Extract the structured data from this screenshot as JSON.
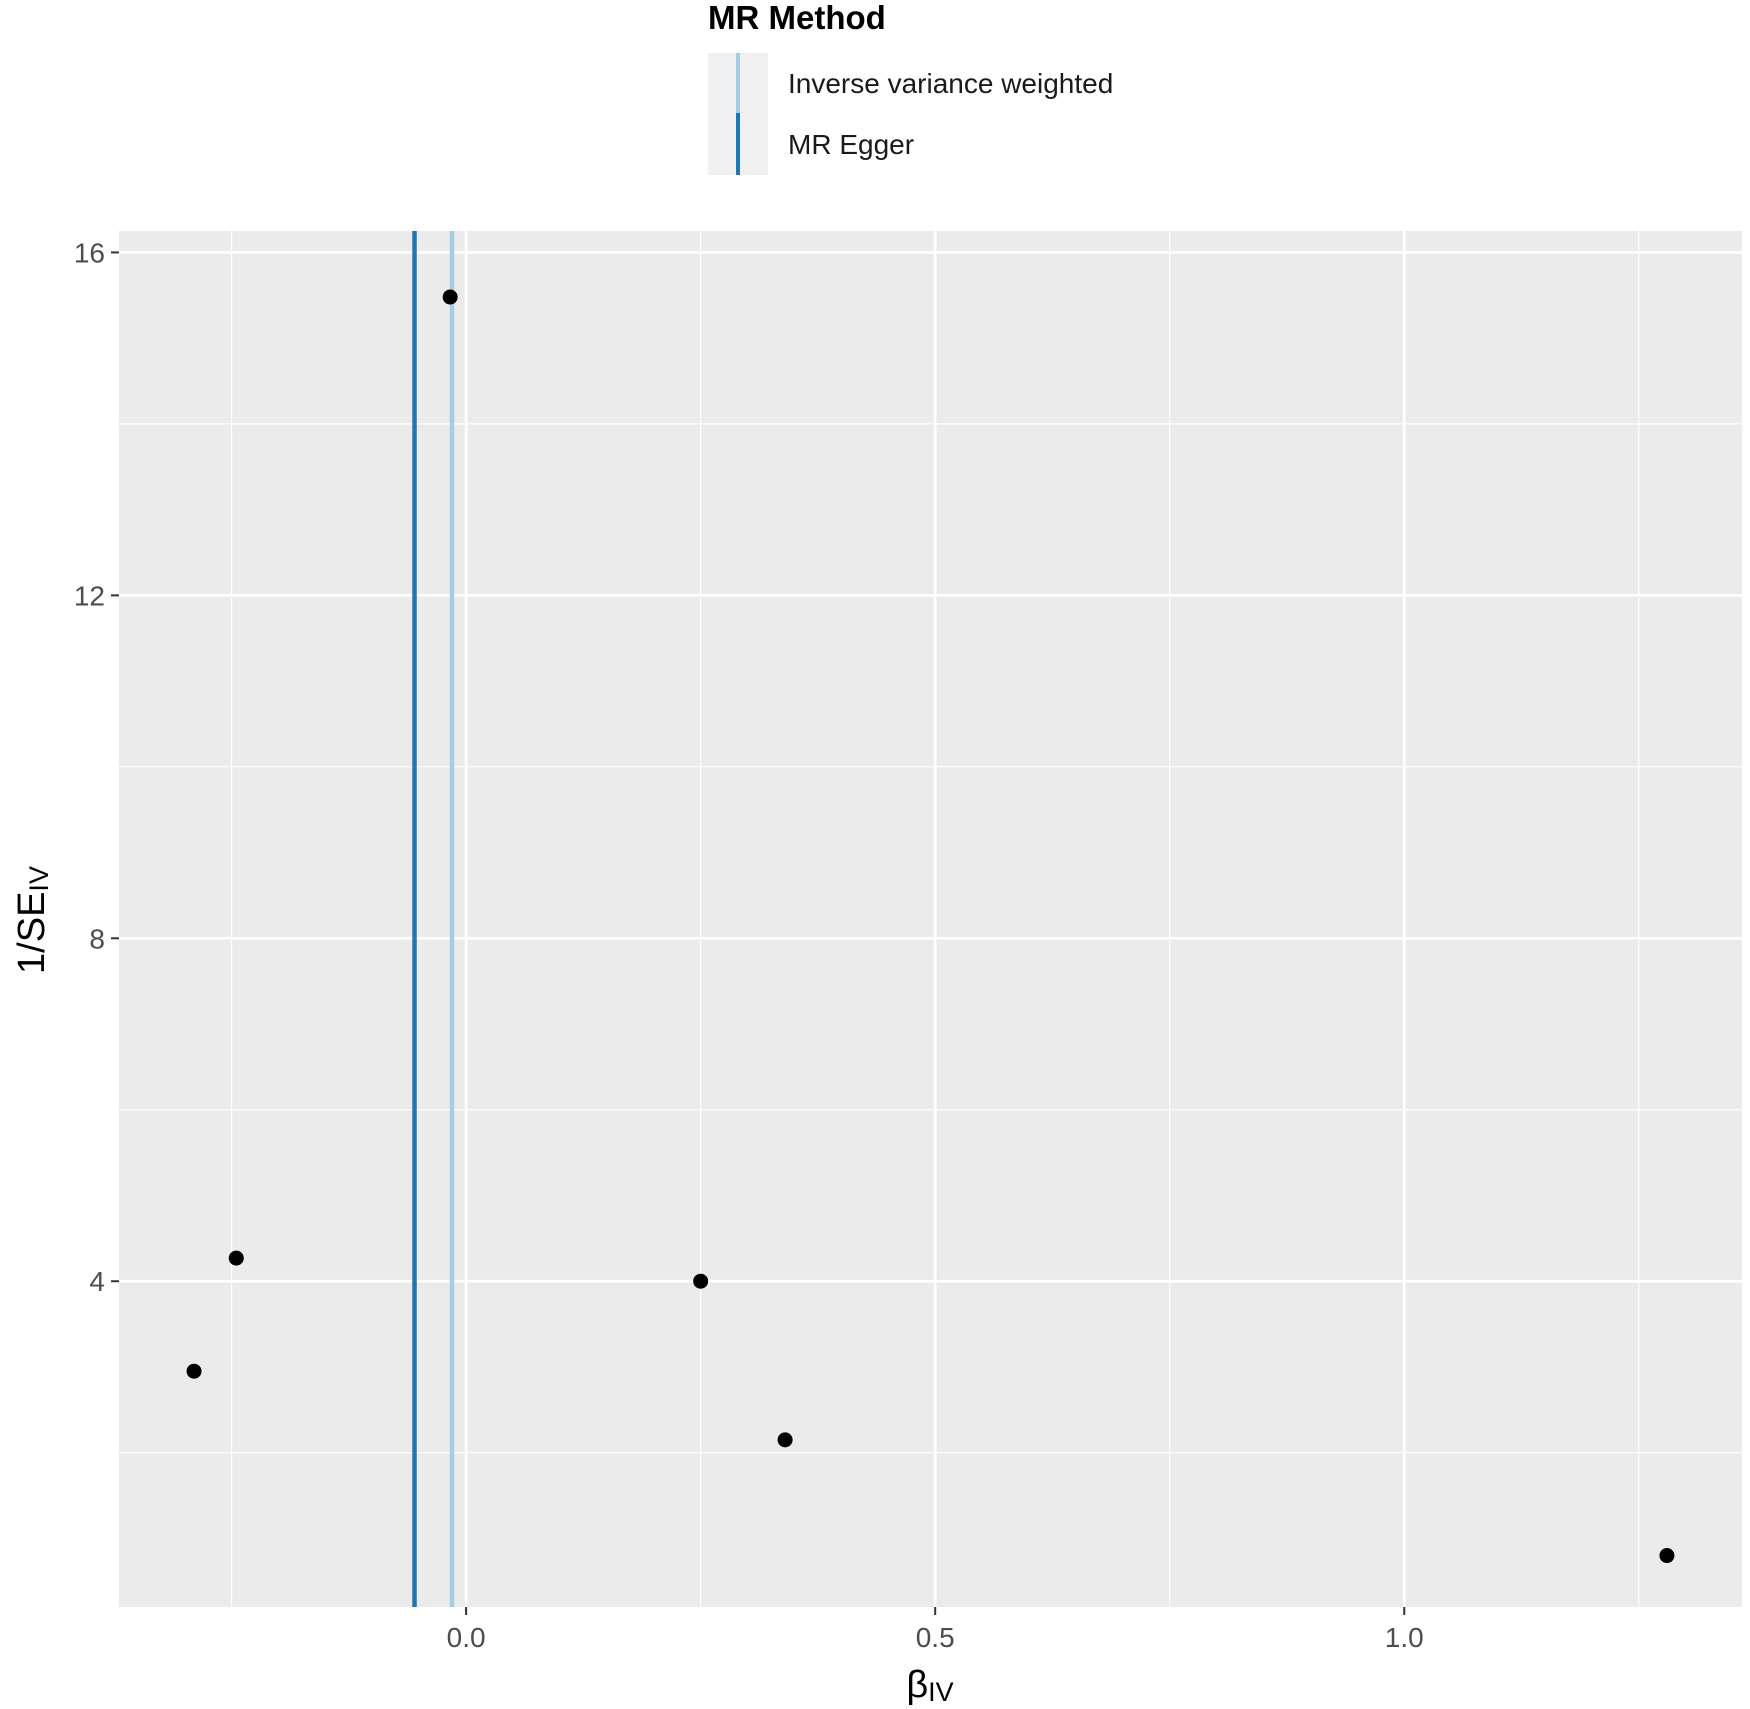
{
  "legend": {
    "title": "MR Method",
    "items": [
      {
        "label": "Inverse variance weighted",
        "color": "#a6cee3"
      },
      {
        "label": "MR Egger",
        "color": "#1f78b4"
      }
    ]
  },
  "chart_data": {
    "type": "scatter",
    "xlabel": {
      "main": "β",
      "sub": "IV"
    },
    "ylabel": {
      "main": "1/SE",
      "sub": "IV"
    },
    "xlim": [
      -0.37,
      1.36
    ],
    "ylim": [
      0.2,
      16.25
    ],
    "x_ticks": [
      0.0,
      0.5,
      1.0
    ],
    "x_tick_labels": [
      "0.0",
      "0.5",
      "1.0"
    ],
    "y_ticks": [
      4,
      8,
      12,
      16
    ],
    "y_tick_labels": [
      "4",
      "8",
      "12",
      "16"
    ],
    "grid": true,
    "legend_position": "top",
    "points": [
      {
        "x": -0.29,
        "y": 2.95
      },
      {
        "x": -0.245,
        "y": 4.27
      },
      {
        "x": -0.017,
        "y": 15.48
      },
      {
        "x": 0.25,
        "y": 4.0
      },
      {
        "x": 0.34,
        "y": 2.15
      },
      {
        "x": 1.28,
        "y": 0.8
      }
    ],
    "vlines": [
      {
        "method": "Inverse variance weighted",
        "x": -0.015,
        "color": "#a6cee3"
      },
      {
        "method": "MR Egger",
        "x": -0.055,
        "color": "#1f78b4"
      }
    ]
  }
}
